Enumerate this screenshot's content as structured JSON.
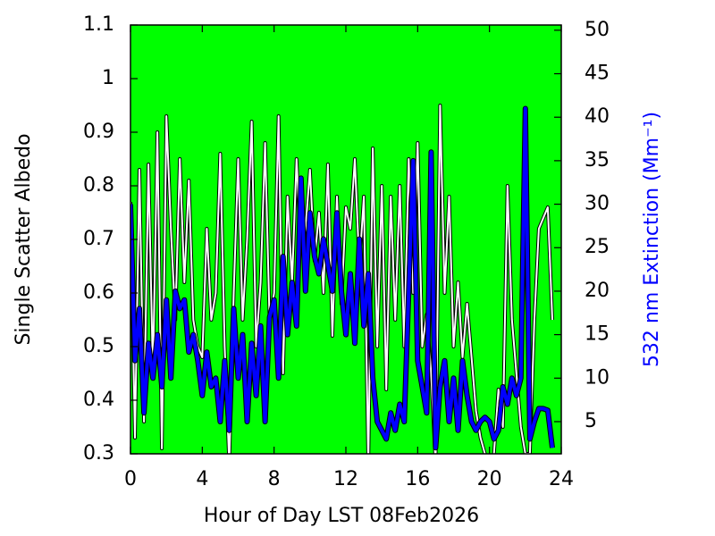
{
  "chart_data": {
    "type": "line",
    "xlabel": "Hour of Day LST 08Feb2026",
    "ylabel": "Single Scatter Albedo",
    "y2label": "532 nm Extinction (Mm⁻¹)",
    "plot_background": "#00ff00",
    "xlim": [
      0,
      24
    ],
    "xticks": [
      0,
      4,
      8,
      12,
      16,
      20,
      24
    ],
    "ylim": [
      0.3,
      1.1
    ],
    "yticks": [
      0.3,
      0.4,
      0.5,
      0.6,
      0.7,
      0.8,
      0.9,
      1,
      1.1
    ],
    "y2lim": [
      1.3,
      50.6
    ],
    "y2ticks": [
      5,
      10,
      15,
      20,
      25,
      30,
      35,
      40,
      45,
      50
    ],
    "x": [
      0,
      0.25,
      0.5,
      0.75,
      1,
      1.25,
      1.5,
      1.75,
      2,
      2.25,
      2.5,
      2.75,
      3,
      3.25,
      3.5,
      3.75,
      4,
      4.25,
      4.5,
      4.75,
      5,
      5.25,
      5.5,
      5.75,
      6,
      6.25,
      6.5,
      6.75,
      7,
      7.25,
      7.5,
      7.75,
      8,
      8.25,
      8.5,
      8.75,
      9,
      9.25,
      9.5,
      9.75,
      10,
      10.25,
      10.5,
      10.75,
      11,
      11.25,
      11.5,
      11.75,
      12,
      12.25,
      12.5,
      12.75,
      13,
      13.25,
      13.5,
      13.75,
      14,
      14.25,
      14.5,
      14.75,
      15,
      15.25,
      15.5,
      15.75,
      16,
      16.25,
      16.5,
      16.75,
      17,
      17.25,
      17.5,
      17.75,
      18,
      18.25,
      18.5,
      18.75,
      19,
      19.25,
      19.5,
      19.75,
      20,
      20.25,
      20.5,
      20.75,
      21,
      21.25,
      21.5,
      21.75,
      22,
      22.25,
      22.5,
      22.75,
      23,
      23.25,
      23.5
    ],
    "series": [
      {
        "color": "#ffffff",
        "values": [
          0.77,
          0.33,
          0.83,
          0.36,
          0.84,
          0.45,
          0.9,
          0.31,
          0.93,
          0.72,
          0.55,
          0.85,
          0.62,
          0.81,
          0.55,
          0.5,
          0.48,
          0.72,
          0.55,
          0.6,
          0.86,
          0.5,
          0.28,
          0.6,
          0.85,
          0.55,
          0.7,
          0.92,
          0.5,
          0.62,
          0.88,
          0.55,
          0.6,
          0.93,
          0.45,
          0.78,
          0.62,
          0.85,
          0.68,
          0.72,
          0.83,
          0.66,
          0.75,
          0.6,
          0.84,
          0.52,
          0.78,
          0.58,
          0.76,
          0.72,
          0.85,
          0.65,
          0.78,
          0.28,
          0.87,
          0.5,
          0.8,
          0.42,
          0.78,
          0.55,
          0.8,
          0.5,
          0.85,
          0.6,
          0.88,
          0.5,
          0.56,
          0.45,
          0.28,
          0.95,
          0.6,
          0.78,
          0.5,
          0.62,
          0.48,
          0.58,
          0.48,
          0.38,
          0.33,
          0.3,
          0.28,
          0.3,
          0.42,
          0.35,
          0.8,
          0.55,
          0.45,
          0.35,
          0.3,
          0.3,
          0.55,
          0.72,
          0.74,
          0.76,
          0.55
        ]
      },
      {
        "color": "#0000ff",
        "axis": "y2",
        "values": [
          30,
          12,
          18,
          6,
          14,
          10,
          15,
          9,
          19,
          10,
          20,
          18,
          19,
          13,
          15,
          12,
          8,
          13,
          9,
          10,
          5,
          12,
          4,
          18,
          10,
          15,
          5,
          14,
          8,
          16,
          5,
          17,
          19,
          10,
          24,
          15,
          21,
          16,
          33,
          20,
          29,
          24,
          22,
          26,
          23,
          20,
          29,
          20,
          15,
          22,
          14,
          26,
          16,
          22,
          10,
          5,
          4,
          3,
          6,
          4,
          7,
          5,
          20,
          35,
          12,
          9,
          6,
          36,
          2,
          9,
          12,
          5,
          10,
          4,
          12,
          8,
          5,
          4,
          5,
          5.5,
          5,
          3,
          4,
          9,
          7,
          10,
          8,
          10,
          41,
          3,
          5,
          6.5,
          6.5,
          6.3,
          2
        ]
      }
    ]
  }
}
